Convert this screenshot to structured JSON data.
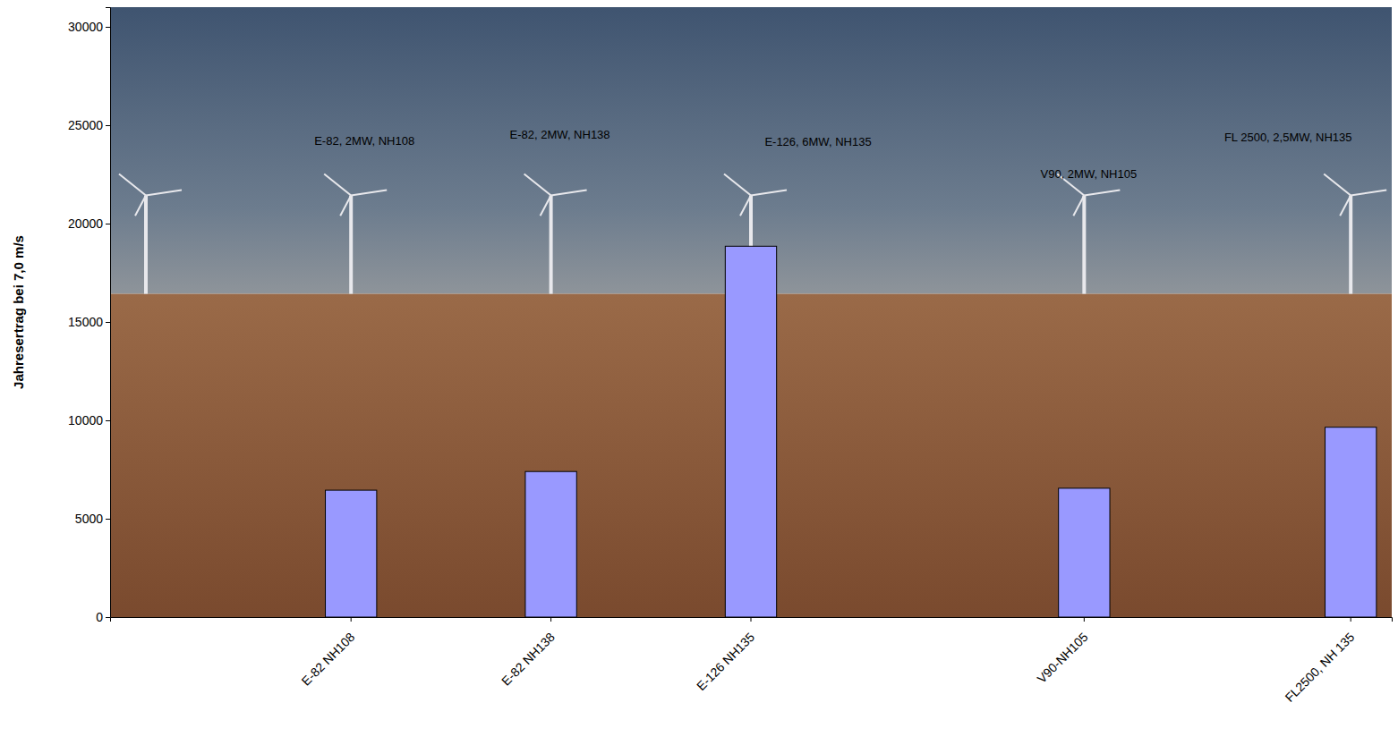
{
  "chart_data": {
    "type": "bar",
    "y_label": "Jahresertrag bei 7,0 m/s",
    "categories": [
      null,
      null,
      null,
      "E-82 NH108",
      null,
      null,
      "E-82 NH138",
      null,
      null,
      "E-126 NH135",
      null,
      null,
      null,
      null,
      "V90-NH105",
      null,
      null,
      null,
      "FL2500, NH 135"
    ],
    "values": [
      null,
      null,
      null,
      6450,
      null,
      null,
      7400,
      null,
      null,
      18850,
      null,
      null,
      null,
      null,
      6550,
      null,
      null,
      null,
      9650
    ],
    "color": "#9999ff",
    "ylim": [
      0,
      31000
    ],
    "yticks": [
      0,
      5000,
      10000,
      15000,
      20000,
      25000,
      30000
    ],
    "annotations": [
      "E-82, 2MW, NH108",
      "E-82, 2MW, NH138",
      "E-126, 6MW, NH135",
      "V90, 2MW, NH105",
      "FL 2500, 2,5MW, NH135"
    ]
  }
}
